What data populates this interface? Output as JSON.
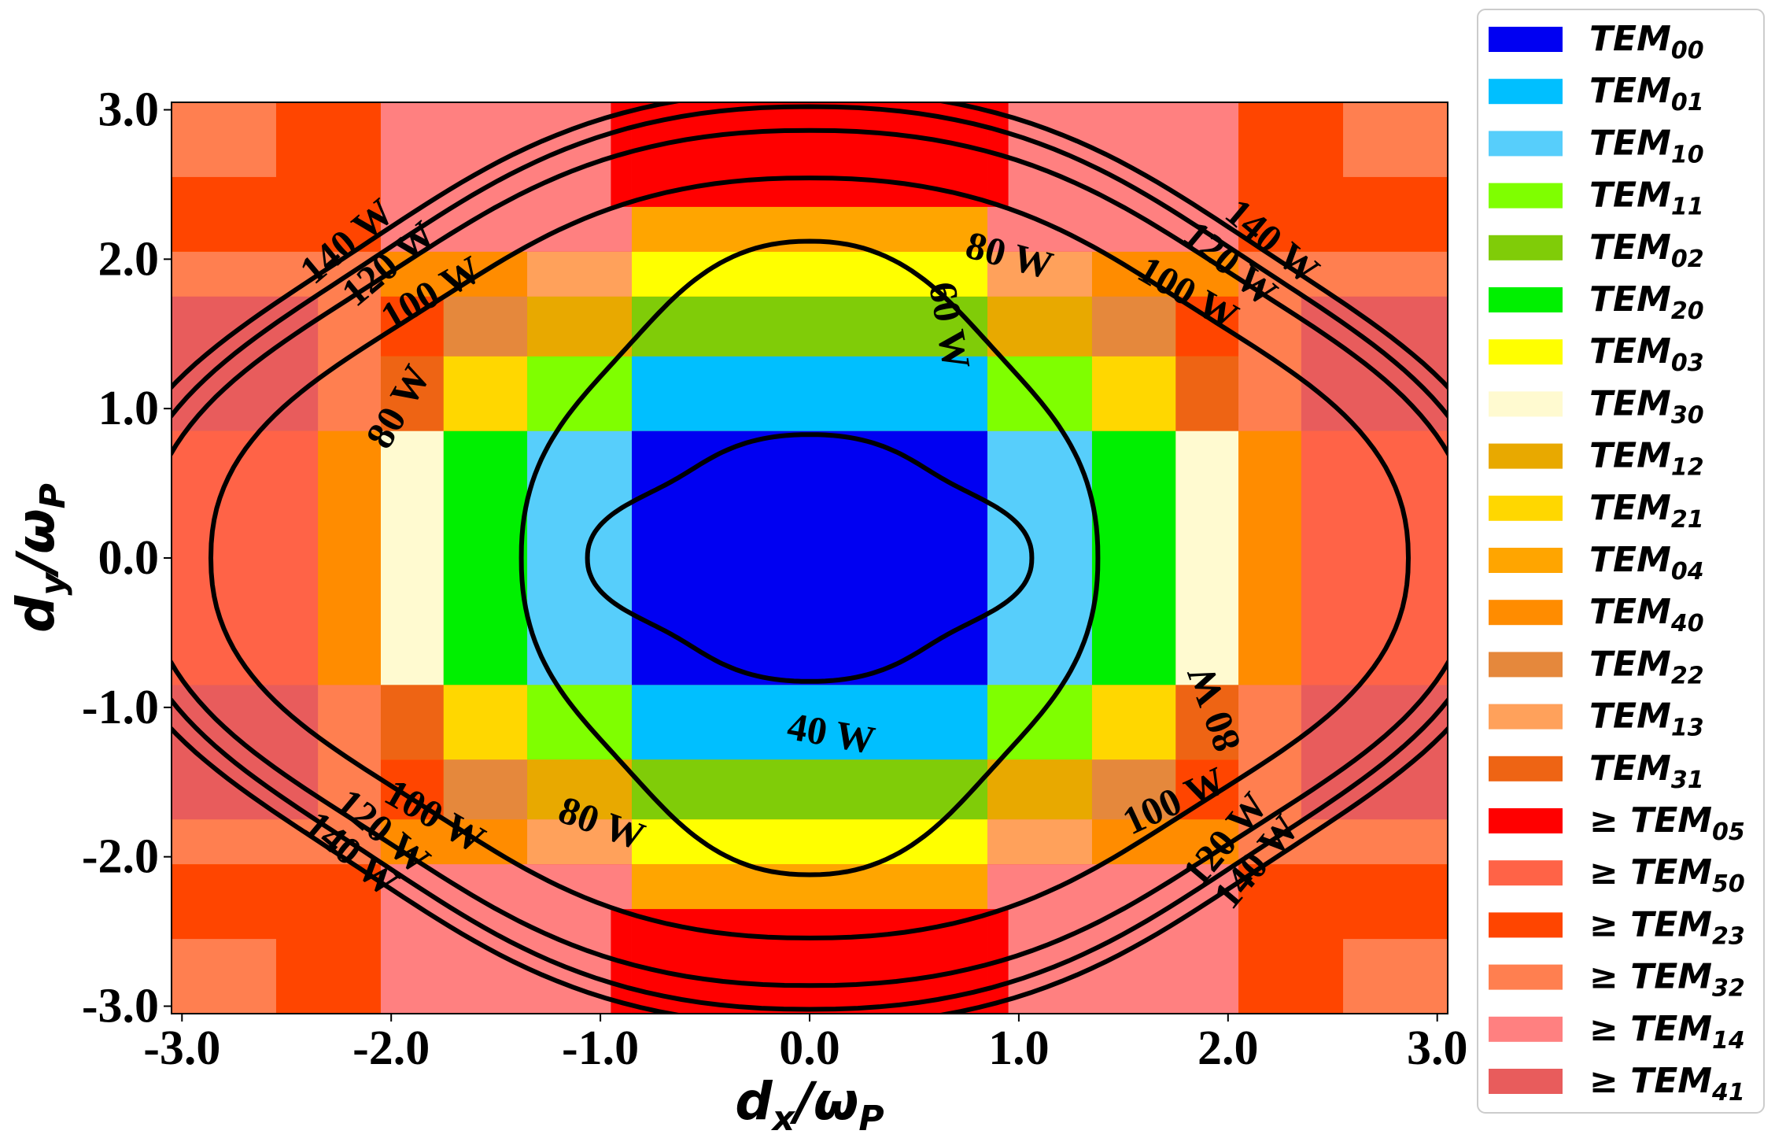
{
  "chart_data": {
    "type": "heatmap",
    "title": "",
    "xlabel": {
      "base": "d",
      "sub": "x",
      "rest": "/ω",
      "sub2": "P"
    },
    "ylabel": {
      "base": "d",
      "sub": "y",
      "rest": "/ω",
      "sub2": "P"
    },
    "xlim": [
      -3.05,
      3.05
    ],
    "ylim": [
      -3.05,
      3.05
    ],
    "xticks": [
      "-3.0",
      "-2.0",
      "-1.0",
      "0.0",
      "1.0",
      "2.0",
      "3.0"
    ],
    "yticks": [
      "3.0",
      "2.0",
      "1.0",
      "0.0",
      "-1.0",
      "-2.0",
      "-3.0"
    ],
    "legend_position": "right outside",
    "modes": [
      {
        "name": "TEM",
        "sub": "00",
        "prefix": "",
        "color": "#0000F2"
      },
      {
        "name": "TEM",
        "sub": "01",
        "prefix": "",
        "color": "#00BFFF"
      },
      {
        "name": "TEM",
        "sub": "10",
        "prefix": "",
        "color": "#57CEFB"
      },
      {
        "name": "TEM",
        "sub": "11",
        "prefix": "",
        "color": "#7FFF00"
      },
      {
        "name": "TEM",
        "sub": "02",
        "prefix": "",
        "color": "#80CC08"
      },
      {
        "name": "TEM",
        "sub": "20",
        "prefix": "",
        "color": "#00F000"
      },
      {
        "name": "TEM",
        "sub": "03",
        "prefix": "",
        "color": "#FFFF00"
      },
      {
        "name": "TEM",
        "sub": "30",
        "prefix": "",
        "color": "#FFFAD0"
      },
      {
        "name": "TEM",
        "sub": "12",
        "prefix": "",
        "color": "#E8A900"
      },
      {
        "name": "TEM",
        "sub": "21",
        "prefix": "",
        "color": "#FFD700"
      },
      {
        "name": "TEM",
        "sub": "04",
        "prefix": "",
        "color": "#FFA500"
      },
      {
        "name": "TEM",
        "sub": "40",
        "prefix": "",
        "color": "#FF8C00"
      },
      {
        "name": "TEM",
        "sub": "22",
        "prefix": "",
        "color": "#E5883C"
      },
      {
        "name": "TEM",
        "sub": "13",
        "prefix": "",
        "color": "#FFA15B"
      },
      {
        "name": "TEM",
        "sub": "31",
        "prefix": "",
        "color": "#EE6414"
      },
      {
        "name": "TEM",
        "sub": "05",
        "prefix": "≥",
        "color": "#FF0000"
      },
      {
        "name": "TEM",
        "sub": "50",
        "prefix": "≥",
        "color": "#FF6347"
      },
      {
        "name": "TEM",
        "sub": "23",
        "prefix": "≥",
        "color": "#FF4500"
      },
      {
        "name": "TEM",
        "sub": "32",
        "prefix": "≥",
        "color": "#FF7F50"
      },
      {
        "name": "TEM",
        "sub": "14",
        "prefix": "≥",
        "color": "#FF8080"
      },
      {
        "name": "TEM",
        "sub": "41",
        "prefix": "≥",
        "color": "#E85C5C"
      }
    ],
    "regions": [
      {
        "mode": 0,
        "x": [
          -0.85,
          0.85
        ],
        "y": [
          -0.85,
          0.85
        ]
      },
      {
        "mode": 2,
        "x": [
          -1.35,
          -0.85
        ],
        "y": [
          -0.85,
          0.85
        ]
      },
      {
        "mode": 2,
        "x": [
          0.85,
          1.35
        ],
        "y": [
          -0.85,
          0.85
        ]
      },
      {
        "mode": 1,
        "x": [
          -0.85,
          0.85
        ],
        "y": [
          0.85,
          1.35
        ]
      },
      {
        "mode": 1,
        "x": [
          -0.85,
          0.85
        ],
        "y": [
          -1.35,
          -0.85
        ]
      },
      {
        "mode": 5,
        "x": [
          -1.75,
          -1.35
        ],
        "y": [
          -0.85,
          0.85
        ]
      },
      {
        "mode": 5,
        "x": [
          1.35,
          1.75
        ],
        "y": [
          -0.85,
          0.85
        ]
      },
      {
        "mode": 4,
        "x": [
          -0.85,
          0.85
        ],
        "y": [
          1.35,
          1.75
        ]
      },
      {
        "mode": 4,
        "x": [
          -0.85,
          0.85
        ],
        "y": [
          -1.75,
          -1.35
        ]
      },
      {
        "mode": 7,
        "x": [
          -2.05,
          -1.75
        ],
        "y": [
          -0.85,
          0.85
        ]
      },
      {
        "mode": 7,
        "x": [
          1.75,
          2.05
        ],
        "y": [
          -0.85,
          0.85
        ]
      },
      {
        "mode": 6,
        "x": [
          -0.85,
          0.85
        ],
        "y": [
          1.75,
          2.05
        ]
      },
      {
        "mode": 6,
        "x": [
          -0.85,
          0.85
        ],
        "y": [
          -2.05,
          -1.75
        ]
      },
      {
        "mode": 11,
        "x": [
          -2.35,
          -2.05
        ],
        "y": [
          -0.85,
          0.85
        ]
      },
      {
        "mode": 11,
        "x": [
          2.05,
          2.35
        ],
        "y": [
          -0.85,
          0.85
        ]
      },
      {
        "mode": 10,
        "x": [
          -0.85,
          0.85
        ],
        "y": [
          2.05,
          2.35
        ]
      },
      {
        "mode": 10,
        "x": [
          -0.85,
          0.85
        ],
        "y": [
          -2.35,
          -2.05
        ]
      },
      {
        "mode": 16,
        "x": [
          -3.05,
          -2.35
        ],
        "y": [
          -0.85,
          0.85
        ]
      },
      {
        "mode": 16,
        "x": [
          2.35,
          3.05
        ],
        "y": [
          -0.85,
          0.85
        ]
      },
      {
        "mode": 15,
        "x": [
          -0.85,
          0.85
        ],
        "y": [
          2.35,
          3.05
        ]
      },
      {
        "mode": 15,
        "x": [
          -0.85,
          0.85
        ],
        "y": [
          -3.05,
          -2.35
        ]
      },
      {
        "mode": 3,
        "x": [
          -1.35,
          -0.85
        ],
        "y": [
          0.85,
          1.35
        ]
      },
      {
        "mode": 3,
        "x": [
          0.85,
          1.35
        ],
        "y": [
          0.85,
          1.35
        ]
      },
      {
        "mode": 3,
        "x": [
          -1.35,
          -0.85
        ],
        "y": [
          -1.35,
          -0.85
        ]
      },
      {
        "mode": 3,
        "x": [
          0.85,
          1.35
        ],
        "y": [
          -1.35,
          -0.85
        ]
      },
      {
        "mode": 8,
        "x": [
          -1.35,
          -0.85
        ],
        "y": [
          1.35,
          1.75
        ]
      },
      {
        "mode": 8,
        "x": [
          0.85,
          1.35
        ],
        "y": [
          1.35,
          1.75
        ]
      },
      {
        "mode": 8,
        "x": [
          -1.35,
          -0.85
        ],
        "y": [
          -1.75,
          -1.35
        ]
      },
      {
        "mode": 8,
        "x": [
          0.85,
          1.35
        ],
        "y": [
          -1.75,
          -1.35
        ]
      },
      {
        "mode": 9,
        "x": [
          -1.75,
          -1.35
        ],
        "y": [
          0.85,
          1.35
        ]
      },
      {
        "mode": 9,
        "x": [
          1.35,
          1.75
        ],
        "y": [
          0.85,
          1.35
        ]
      },
      {
        "mode": 9,
        "x": [
          -1.75,
          -1.35
        ],
        "y": [
          -1.35,
          -0.85
        ]
      },
      {
        "mode": 9,
        "x": [
          1.35,
          1.75
        ],
        "y": [
          -1.35,
          -0.85
        ]
      },
      {
        "mode": 12,
        "x": [
          -1.75,
          -1.35
        ],
        "y": [
          1.35,
          1.75
        ]
      },
      {
        "mode": 12,
        "x": [
          1.35,
          1.75
        ],
        "y": [
          1.35,
          1.75
        ]
      },
      {
        "mode": 12,
        "x": [
          -1.75,
          -1.35
        ],
        "y": [
          -1.75,
          -1.35
        ]
      },
      {
        "mode": 12,
        "x": [
          1.35,
          1.75
        ],
        "y": [
          -1.75,
          -1.35
        ]
      },
      {
        "mode": 13,
        "x": [
          -1.35,
          -0.85
        ],
        "y": [
          1.75,
          2.05
        ]
      },
      {
        "mode": 13,
        "x": [
          0.85,
          1.35
        ],
        "y": [
          1.75,
          2.05
        ]
      },
      {
        "mode": 13,
        "x": [
          -1.35,
          -0.85
        ],
        "y": [
          -2.05,
          -1.75
        ]
      },
      {
        "mode": 13,
        "x": [
          0.85,
          1.35
        ],
        "y": [
          -2.05,
          -1.75
        ]
      },
      {
        "mode": 14,
        "x": [
          -2.05,
          -1.75
        ],
        "y": [
          0.85,
          1.35
        ]
      },
      {
        "mode": 14,
        "x": [
          1.75,
          2.05
        ],
        "y": [
          0.85,
          1.35
        ]
      },
      {
        "mode": 14,
        "x": [
          -2.05,
          -1.75
        ],
        "y": [
          -1.35,
          -0.85
        ]
      },
      {
        "mode": 14,
        "x": [
          1.75,
          2.05
        ],
        "y": [
          -1.35,
          -0.85
        ]
      },
      {
        "mode": 17,
        "x": [
          -1.35,
          -0.85
        ],
        "y": [
          2.05,
          2.35
        ]
      },
      {
        "mode": 17,
        "x": [
          0.85,
          1.35
        ],
        "y": [
          2.05,
          2.35
        ]
      },
      {
        "mode": 17,
        "x": [
          -1.35,
          -0.85
        ],
        "y": [
          -2.35,
          -2.05
        ]
      },
      {
        "mode": 17,
        "x": [
          0.85,
          1.35
        ],
        "y": [
          -2.35,
          -2.05
        ]
      },
      {
        "mode": 17,
        "x": [
          -2.05,
          -1.75
        ],
        "y": [
          1.35,
          1.75
        ]
      },
      {
        "mode": 17,
        "x": [
          1.75,
          2.05
        ],
        "y": [
          1.35,
          1.75
        ]
      },
      {
        "mode": 17,
        "x": [
          -2.05,
          -1.75
        ],
        "y": [
          -1.75,
          -1.35
        ]
      },
      {
        "mode": 17,
        "x": [
          1.75,
          2.05
        ],
        "y": [
          -1.75,
          -1.35
        ]
      },
      {
        "mode": 19,
        "x": [
          -2.05,
          -0.85
        ],
        "y": [
          2.05,
          3.05
        ]
      },
      {
        "mode": 19,
        "x": [
          0.85,
          2.05
        ],
        "y": [
          2.05,
          3.05
        ]
      },
      {
        "mode": 19,
        "x": [
          -2.05,
          -0.85
        ],
        "y": [
          -3.05,
          -2.05
        ]
      },
      {
        "mode": 19,
        "x": [
          0.85,
          2.05
        ],
        "y": [
          -3.05,
          -2.05
        ]
      },
      {
        "mode": 18,
        "x": [
          -3.05,
          -2.05
        ],
        "y": [
          0.85,
          2.05
        ]
      },
      {
        "mode": 18,
        "x": [
          2.05,
          3.05
        ],
        "y": [
          0.85,
          2.05
        ]
      },
      {
        "mode": 18,
        "x": [
          -3.05,
          -2.05
        ],
        "y": [
          -2.05,
          -0.85
        ]
      },
      {
        "mode": 18,
        "x": [
          2.05,
          3.05
        ],
        "y": [
          -2.05,
          -0.85
        ]
      },
      {
        "mode": 20,
        "x": [
          -3.05,
          -2.35
        ],
        "y": [
          0.85,
          1.75
        ]
      },
      {
        "mode": 20,
        "x": [
          2.35,
          3.05
        ],
        "y": [
          0.85,
          1.75
        ]
      },
      {
        "mode": 20,
        "x": [
          -3.05,
          -2.35
        ],
        "y": [
          -1.75,
          -0.85
        ]
      },
      {
        "mode": 20,
        "x": [
          2.35,
          3.05
        ],
        "y": [
          -1.75,
          -0.85
        ]
      },
      {
        "mode": 17,
        "x": [
          -3.05,
          -2.05
        ],
        "y": [
          2.05,
          3.05
        ]
      },
      {
        "mode": 17,
        "x": [
          2.05,
          3.05
        ],
        "y": [
          2.05,
          3.05
        ]
      },
      {
        "mode": 17,
        "x": [
          -3.05,
          -2.05
        ],
        "y": [
          -3.05,
          -2.05
        ]
      },
      {
        "mode": 17,
        "x": [
          2.05,
          3.05
        ],
        "y": [
          -3.05,
          -2.05
        ]
      },
      {
        "mode": 18,
        "x": [
          -3.05,
          -2.55
        ],
        "y": [
          2.55,
          3.05
        ]
      },
      {
        "mode": 18,
        "x": [
          2.55,
          3.05
        ],
        "y": [
          2.55,
          3.05
        ]
      },
      {
        "mode": 18,
        "x": [
          -3.05,
          -2.55
        ],
        "y": [
          -3.05,
          -2.55
        ]
      },
      {
        "mode": 18,
        "x": [
          2.55,
          3.05
        ],
        "y": [
          -3.05,
          -2.55
        ]
      },
      {
        "mode": 15,
        "x": [
          -0.95,
          -0.85
        ],
        "y": [
          2.35,
          3.05
        ]
      },
      {
        "mode": 15,
        "x": [
          0.85,
          0.95
        ],
        "y": [
          2.35,
          3.05
        ]
      },
      {
        "mode": 15,
        "x": [
          -0.95,
          -0.85
        ],
        "y": [
          -3.05,
          -2.35
        ]
      },
      {
        "mode": 15,
        "x": [
          0.85,
          0.95
        ],
        "y": [
          -3.05,
          -2.35
        ]
      }
    ],
    "contours": [
      {
        "label": "40 W",
        "level": 40,
        "rx": 0.9,
        "ry": 0.7
      },
      {
        "label": "60 W",
        "level": 60,
        "rx": 1.3,
        "ry": 2.0
      },
      {
        "label": "80 W",
        "level": 80,
        "rx": 2.7,
        "ry": 2.4
      },
      {
        "label": "100 W",
        "level": 100,
        "rx": 3.0,
        "ry": 2.7
      },
      {
        "label": "120 W",
        "level": 120,
        "rx": 3.1,
        "ry": 2.85
      },
      {
        "label": "140 W",
        "level": 140,
        "rx": 3.2,
        "ry": 2.95
      }
    ],
    "contour_labels": [
      {
        "text": "40 W",
        "x": 0.1,
        "y": -1.2,
        "angle": 10
      },
      {
        "text": "60 W",
        "x": 0.65,
        "y": 1.55,
        "angle": 80
      },
      {
        "text": "80 W",
        "x": 0.95,
        "y": 2.0,
        "angle": 15
      },
      {
        "text": "80 W",
        "x": -1.95,
        "y": 1.0,
        "angle": -60
      },
      {
        "text": "80 W",
        "x": -1.0,
        "y": -1.8,
        "angle": 20
      },
      {
        "text": "80 W",
        "x": 1.95,
        "y": -1.0,
        "angle": -110
      },
      {
        "text": "100 W",
        "x": -1.8,
        "y": 1.75,
        "angle": -30
      },
      {
        "text": "100 W",
        "x": 1.8,
        "y": 1.75,
        "angle": 30
      },
      {
        "text": "100 W",
        "x": -1.8,
        "y": -1.75,
        "angle": 30
      },
      {
        "text": "100 W",
        "x": 1.75,
        "y": -1.65,
        "angle": -25
      },
      {
        "text": "120 W",
        "x": -2.0,
        "y": 1.95,
        "angle": -40
      },
      {
        "text": "120 W",
        "x": 2.0,
        "y": 1.95,
        "angle": 40
      },
      {
        "text": "120 W",
        "x": -2.05,
        "y": -1.85,
        "angle": 40
      },
      {
        "text": "120 W",
        "x": 2.0,
        "y": -1.9,
        "angle": -50
      },
      {
        "text": "140 W",
        "x": -2.2,
        "y": 2.1,
        "angle": -40
      },
      {
        "text": "140 W",
        "x": 2.2,
        "y": 2.1,
        "angle": 40
      },
      {
        "text": "140 W",
        "x": -2.2,
        "y": -2.0,
        "angle": 40
      },
      {
        "text": "140 W",
        "x": 2.15,
        "y": -2.05,
        "angle": -50
      }
    ]
  }
}
